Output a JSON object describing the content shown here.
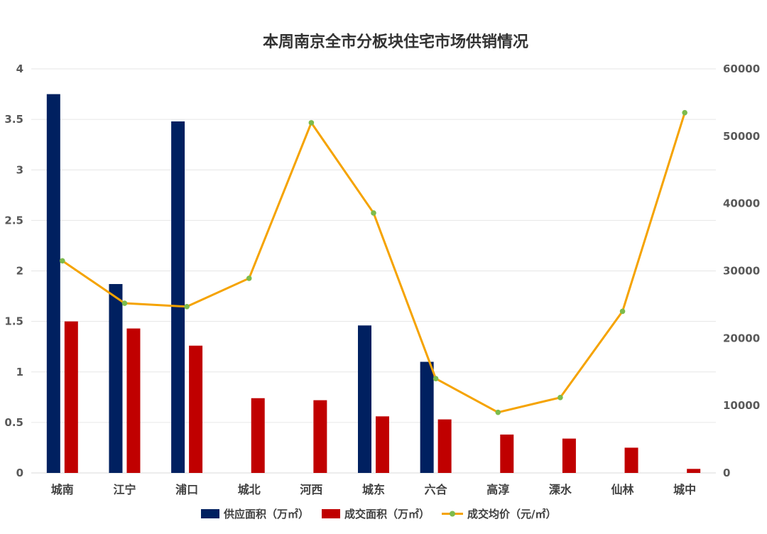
{
  "chart_data": {
    "type": "bar",
    "title": "本周南京全市分板块住宅市场供销情况",
    "categories": [
      "城南",
      "江宁",
      "浦口",
      "城北",
      "河西",
      "城东",
      "六合",
      "高淳",
      "溧水",
      "仙林",
      "城中"
    ],
    "y_left": {
      "ylim": [
        0,
        4
      ],
      "ticks": [
        "0",
        "0.5",
        "1",
        "1.5",
        "2",
        "2.5",
        "3",
        "3.5",
        "4"
      ]
    },
    "y_right": {
      "ylim": [
        0,
        60000
      ],
      "ticks": [
        "0",
        "10000",
        "20000",
        "30000",
        "40000",
        "50000",
        "60000"
      ]
    },
    "grid": true,
    "legend_position": "bottom",
    "series": [
      {
        "name": "供应面积（万㎡）",
        "type": "bar",
        "axis": "left",
        "color": "#002060",
        "values": [
          3.75,
          1.87,
          3.48,
          0,
          0,
          1.46,
          1.1,
          0,
          0,
          0,
          0
        ]
      },
      {
        "name": "成交面积（万㎡）",
        "type": "bar",
        "axis": "left",
        "color": "#C00000",
        "values": [
          1.5,
          1.43,
          1.26,
          0.74,
          0.72,
          0.56,
          0.53,
          0.38,
          0.34,
          0.25,
          0.04
        ]
      },
      {
        "name": "成交均价（元/㎡）",
        "type": "line",
        "axis": "right",
        "color": "#F5A300",
        "marker_color": "#7DBB4C",
        "values": [
          31500,
          25200,
          24700,
          28900,
          52000,
          38600,
          14000,
          9000,
          11200,
          24000,
          53500
        ]
      }
    ]
  }
}
